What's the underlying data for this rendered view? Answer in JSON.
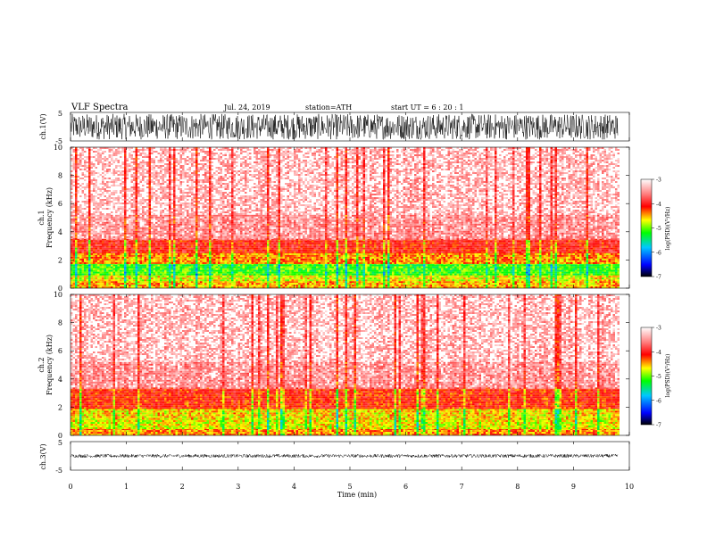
{
  "header": {
    "title": "VLF  Spectra",
    "date": "Jul.  24, 2019",
    "station": "station=ATH",
    "start": "start  UT  =   6   : 20 : 1"
  },
  "chart_data": [
    {
      "type": "line",
      "ylabel": "ch.1(V)",
      "ylim": [
        -5,
        5
      ],
      "yticks": [
        "5",
        "-5"
      ],
      "xlim": [
        0,
        10
      ],
      "description_amplitude": 4.5,
      "series": [
        {
          "values": [
            0.0
          ]
        }
      ]
    },
    {
      "type": "heatmap",
      "ylabel": "Frequency  (kHz)",
      "channel": "ch.1",
      "ylim": [
        0,
        10
      ],
      "yticks": [
        "0",
        "2",
        "4",
        "6",
        "8",
        "10"
      ],
      "xlim": [
        0,
        9.8
      ],
      "colorbar": {
        "label": "log(PSD)(V²/Hz)",
        "range": [
          -7,
          -3
        ],
        "ticks": [
          "-3",
          "-4",
          "-5",
          "-6",
          "-7"
        ]
      },
      "bands": [
        {
          "from": 0.0,
          "to": 0.5,
          "level": -4.4
        },
        {
          "from": 0.5,
          "to": 1.0,
          "level": -4.6
        },
        {
          "from": 1.0,
          "to": 1.8,
          "level": -5.0
        },
        {
          "from": 1.8,
          "to": 2.6,
          "level": -4.3
        },
        {
          "from": 2.6,
          "to": 3.5,
          "level": -3.9
        },
        {
          "from": 3.5,
          "to": 5.2,
          "level": -3.3
        },
        {
          "from": 5.2,
          "to": 10.0,
          "level": -3.1
        }
      ]
    },
    {
      "type": "heatmap",
      "ylabel": "Frequency  (kHz)",
      "channel": "ch.2",
      "ylim": [
        0,
        10
      ],
      "yticks": [
        "0",
        "2",
        "4",
        "6",
        "8",
        "10"
      ],
      "xlim": [
        0,
        9.8
      ],
      "colorbar": {
        "label": "log(PSD)(V²/Hz)",
        "range": [
          -7,
          -3
        ],
        "ticks": [
          "-3",
          "-4",
          "-5",
          "-6",
          "-7"
        ]
      },
      "bands": [
        {
          "from": 0.0,
          "to": 0.5,
          "level": -4.3
        },
        {
          "from": 0.5,
          "to": 1.2,
          "level": -4.6
        },
        {
          "from": 1.2,
          "to": 2.0,
          "level": -4.5
        },
        {
          "from": 2.0,
          "to": 3.4,
          "level": -4.0
        },
        {
          "from": 3.4,
          "to": 5.2,
          "level": -3.3
        },
        {
          "from": 5.2,
          "to": 10.0,
          "level": -3.1
        }
      ]
    },
    {
      "type": "line",
      "ylabel": "ch.3(V)",
      "ylim": [
        -5,
        5
      ],
      "yticks": [
        "5",
        "-5"
      ],
      "xlim": [
        0,
        10
      ],
      "description_amplitude": 0.6,
      "series": [
        {
          "values": [
            0.0
          ]
        }
      ]
    }
  ],
  "xaxis": {
    "label": "Time  (min)",
    "ticks": [
      "0",
      "1",
      "2",
      "3",
      "4",
      "5",
      "6",
      "7",
      "8",
      "9",
      "10"
    ]
  },
  "colors": {
    "axis": "#000000",
    "high": "#ffffff",
    "red": "#ff0000",
    "yellow": "#ffff00",
    "green": "#00ff00",
    "blue": "#0000ff",
    "low": "#000000"
  }
}
